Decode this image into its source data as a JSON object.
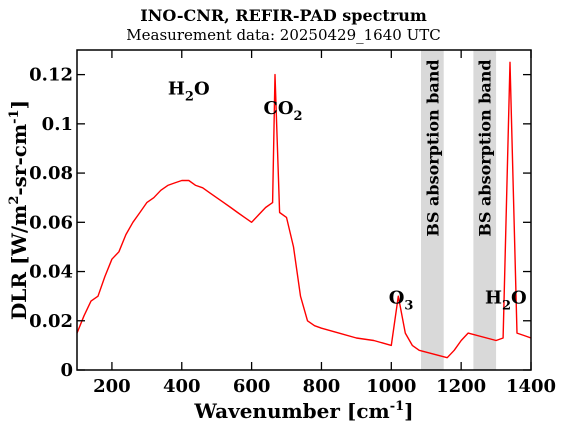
{
  "title": "INO-CNR, REFIR-PAD spectrum",
  "subtitle": "Measurement data: 20250429_1640 UTC",
  "chart_data": {
    "type": "line",
    "title": "INO-CNR, REFIR-PAD spectrum",
    "subtitle": "Measurement data: 20250429_1640 UTC",
    "xlabel": {
      "text": "Wavenumber [cm",
      "sup": "-1",
      "close": "]"
    },
    "ylabel": {
      "text": "DLR [W/m",
      "sup": "2",
      "mid": "-sr-cm",
      "sup2": "-1",
      "close": "]"
    },
    "xlim": [
      100,
      1400
    ],
    "ylim": [
      0,
      0.13
    ],
    "x_ticks": [
      200,
      400,
      600,
      800,
      1000,
      1200,
      1400
    ],
    "y_ticks": [
      0,
      0.02,
      0.04,
      0.06,
      0.08,
      0.1,
      0.12
    ],
    "y_tick_labels": [
      "0",
      "0.02",
      "0.04",
      "0.06",
      "0.08",
      "0.1",
      "0.12"
    ],
    "series": [
      {
        "color": "#ff0000",
        "x": [
          100,
          120,
          140,
          160,
          180,
          200,
          220,
          240,
          260,
          280,
          300,
          320,
          340,
          360,
          380,
          400,
          420,
          440,
          460,
          480,
          500,
          520,
          540,
          560,
          580,
          600,
          620,
          640,
          660,
          667,
          680,
          700,
          720,
          740,
          760,
          780,
          800,
          850,
          900,
          950,
          1000,
          1020,
          1040,
          1060,
          1080,
          1160,
          1180,
          1200,
          1220,
          1300,
          1320,
          1340,
          1360,
          1380,
          1400
        ],
        "y": [
          0.015,
          0.022,
          0.028,
          0.03,
          0.038,
          0.045,
          0.048,
          0.055,
          0.06,
          0.064,
          0.068,
          0.07,
          0.073,
          0.075,
          0.076,
          0.077,
          0.077,
          0.075,
          0.074,
          0.072,
          0.07,
          0.068,
          0.066,
          0.064,
          0.062,
          0.06,
          0.063,
          0.066,
          0.068,
          0.12,
          0.064,
          0.062,
          0.05,
          0.03,
          0.02,
          0.018,
          0.017,
          0.015,
          0.013,
          0.012,
          0.01,
          0.03,
          0.015,
          0.01,
          0.008,
          0.005,
          0.008,
          0.012,
          0.015,
          0.012,
          0.013,
          0.125,
          0.015,
          0.014,
          0.013
        ]
      }
    ],
    "bands": [
      {
        "x_start": 1085,
        "x_end": 1150,
        "label": "BS absorption band"
      },
      {
        "x_start": 1235,
        "x_end": 1300,
        "label": "BS absorption band"
      }
    ],
    "annotations": [
      {
        "x": 420,
        "y": 0.112,
        "text": "H",
        "sub": "2",
        "tail": "O"
      },
      {
        "x": 690,
        "y": 0.104,
        "text": "CO",
        "sub": "2",
        "tail": ""
      },
      {
        "x": 1028,
        "y": 0.027,
        "text": "O",
        "sub": "3",
        "tail": ""
      },
      {
        "x": 1328,
        "y": 0.027,
        "text": "H",
        "sub": "2",
        "tail": "O"
      }
    ]
  }
}
